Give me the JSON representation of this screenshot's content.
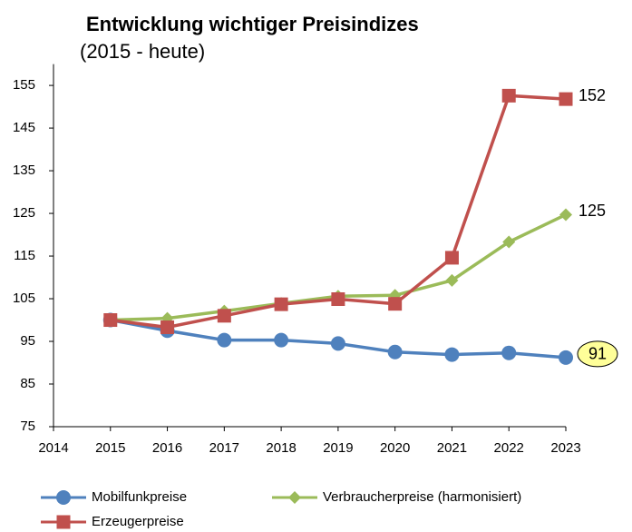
{
  "chart_data": {
    "type": "line",
    "title": "Entwicklung wichtiger Preisindizes",
    "subtitle": "(2015 - heute)",
    "x": [
      2015,
      2016,
      2017,
      2018,
      2019,
      2020,
      2021,
      2022,
      2023
    ],
    "xlim": [
      2014,
      2023
    ],
    "xticks": [
      2014,
      2015,
      2016,
      2017,
      2018,
      2019,
      2020,
      2021,
      2022,
      2023
    ],
    "ylim": [
      75,
      160
    ],
    "yticks": [
      75,
      85,
      95,
      105,
      115,
      125,
      135,
      145,
      155
    ],
    "grid": false,
    "series": [
      {
        "name": "Mobilfunkpreise",
        "color": "#4f81bd",
        "marker": "circle",
        "values": [
          100,
          97.5,
          95.3,
          95.3,
          94.5,
          92.5,
          91.9,
          92.3,
          91.2
        ],
        "value_labels": [
          null,
          null,
          null,
          null,
          null,
          null,
          null,
          null,
          "91"
        ]
      },
      {
        "name": "Verbraucherpreise (harmonisiert)",
        "color": "#9bbb59",
        "marker": "diamond",
        "values": [
          100,
          100.4,
          102.1,
          103.9,
          105.6,
          105.8,
          109.3,
          118.3,
          124.7
        ],
        "value_labels": [
          null,
          null,
          null,
          null,
          null,
          null,
          null,
          null,
          "125"
        ]
      },
      {
        "name": "Erzeugerpreise",
        "color": "#c0504d",
        "marker": "square",
        "values": [
          100,
          98.3,
          101,
          103.7,
          104.9,
          103.8,
          114.6,
          152.6,
          151.8
        ],
        "value_labels": [
          null,
          null,
          null,
          null,
          null,
          null,
          null,
          null,
          "152"
        ]
      }
    ]
  }
}
